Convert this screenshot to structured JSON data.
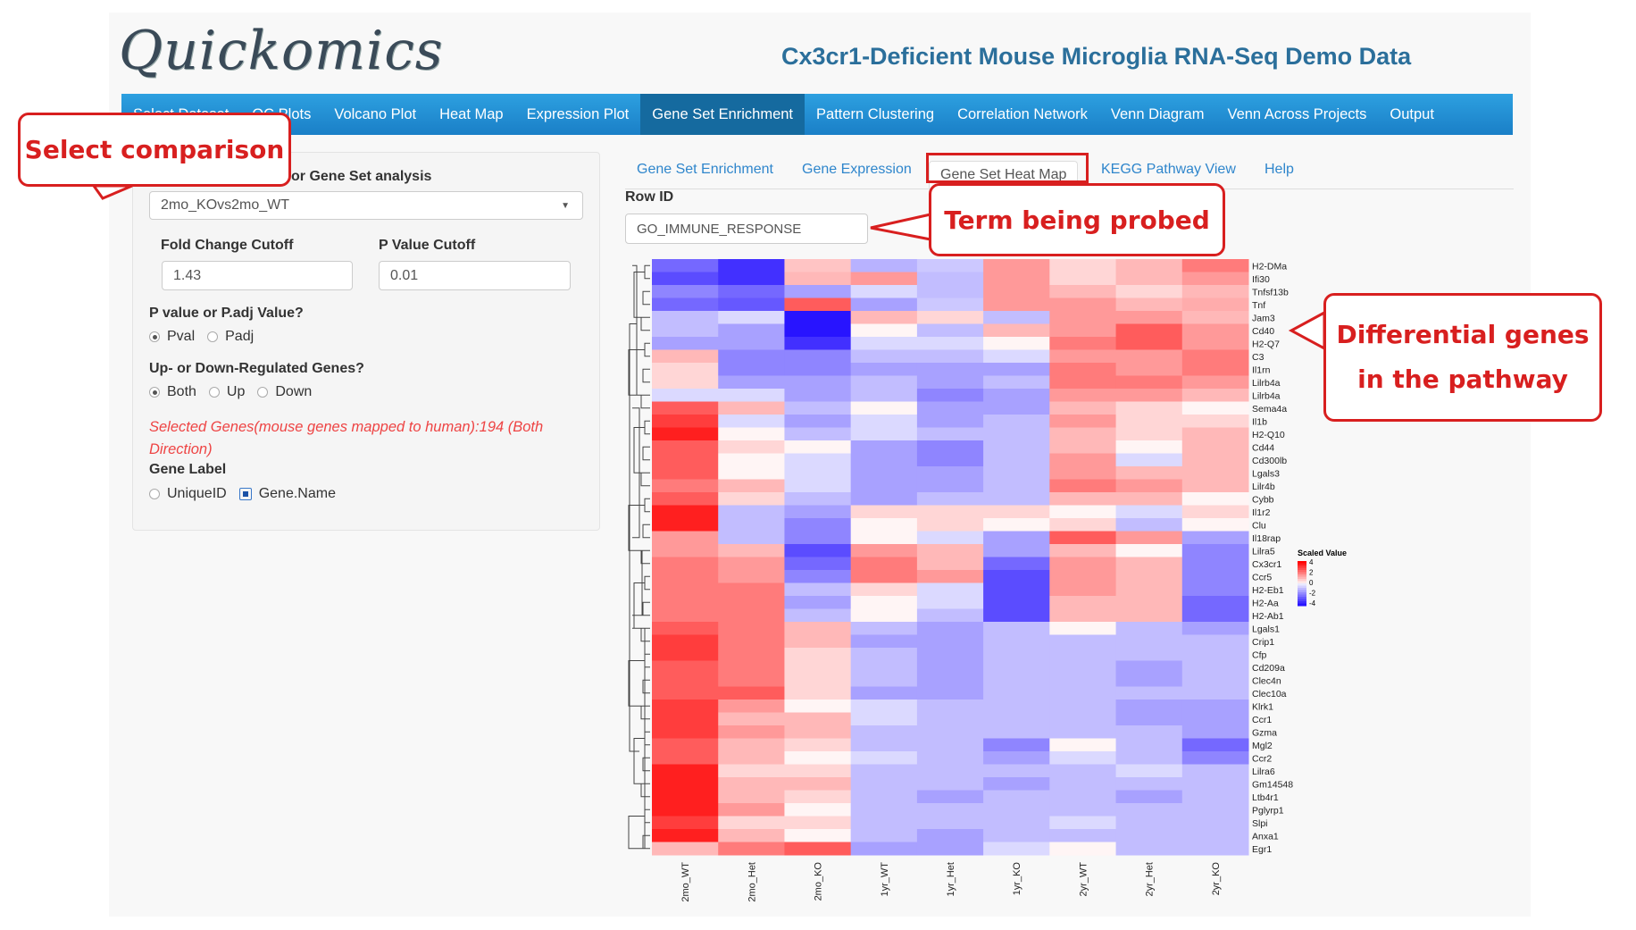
{
  "app": {
    "logo": "Quickomics",
    "project_title": "Cx3cr1-Deficient Mouse Microglia RNA-Seq Demo Data"
  },
  "nav": [
    "Select Dataset",
    "QC Plots",
    "Volcano Plot",
    "Heat Map",
    "Expression Plot",
    "Gene Set Enrichment",
    "Pattern Clustering",
    "Correlation Network",
    "Venn Diagram",
    "Venn Across Projects",
    "Output"
  ],
  "sidebar": {
    "comparison_label": "or Gene Set analysis",
    "comparison_value": "2mo_KOvs2mo_WT",
    "fold_change_label": "Fold Change Cutoff",
    "fold_change_value": "1.43",
    "pvalue_label": "P Value Cutoff",
    "pvalue_value": "0.01",
    "pval_type_label": "P value or P.adj Value?",
    "pval_opt": "Pval",
    "padj_opt": "Padj",
    "direction_label": "Up- or Down-Regulated Genes?",
    "both_opt": "Both",
    "up_opt": "Up",
    "down_opt": "Down",
    "selected_genes": "Selected Genes(mouse genes mapped to human):194 (Both Direction)",
    "gene_label_label": "Gene Label",
    "uniqueid_opt": "UniqueID",
    "genename_opt": "Gene.Name"
  },
  "tabs": {
    "gse": "Gene Set Enrichment",
    "gexp": "Gene Expression",
    "gshm": "Gene Set Heat Map",
    "kegg": "KEGG Pathway View",
    "help": "Help"
  },
  "rowid": {
    "label": "Row ID",
    "value": "GO_IMMUNE_RESPONSE"
  },
  "callouts": {
    "select": "Select comparison",
    "term": "Term being probed",
    "diff_line1": "Differential genes",
    "diff_line2": "in the pathway"
  },
  "chart_data": {
    "type": "heatmap",
    "columns": [
      "2mo_WT",
      "2mo_Het",
      "2mo_KO",
      "1yr_WT",
      "1yr_Het",
      "1yr_KO",
      "2yr_WT",
      "2yr_Het",
      "2yr_KO"
    ],
    "rows": [
      "H2-DMa",
      "Ifi30",
      "Tnfsf13b",
      "Tnf",
      "Jam3",
      "Cd40",
      "H2-Q7",
      "C3",
      "Il1rn",
      "Lilrb4a",
      "Lilrb4a",
      "Sema4a",
      "Il1b",
      "H2-Q10",
      "Cd44",
      "Cd300lb",
      "Lgals3",
      "Lilr4b",
      "Cybb",
      "Il1r2",
      "Clu",
      "Il18rap",
      "Lilra5",
      "Cx3cr1",
      "Ccr5",
      "H2-Eb1",
      "H2-Aa",
      "H2-Ab1",
      "Lgals1",
      "Crip1",
      "Cfp",
      "Cd209a",
      "Clec4n",
      "Clec10a",
      "Klrk1",
      "Ccr1",
      "Gzma",
      "Mgl2",
      "Ccr2",
      "Lilra6",
      "Gm14548",
      "Ltb4r1",
      "Pglyrp1",
      "Slpi",
      "Anxa1",
      "Egr1"
    ],
    "values": [
      [
        -2.5,
        -3.5,
        0.8,
        -1.2,
        -0.8,
        1.5,
        0.5,
        1,
        2
      ],
      [
        -3,
        -3.5,
        1,
        1.5,
        -1,
        1.5,
        0.5,
        1,
        1.5
      ],
      [
        -2,
        -2.5,
        -1.5,
        -0.5,
        -1,
        1.5,
        1,
        0.5,
        1
      ],
      [
        -2.5,
        -2.8,
        2.5,
        -1.5,
        -0.8,
        1.5,
        1.5,
        1,
        1.2
      ],
      [
        -1,
        -0.5,
        -4,
        1,
        0.5,
        -1,
        1.5,
        1.5,
        1
      ],
      [
        -1,
        -1.5,
        -4,
        0,
        -1,
        1,
        1.5,
        2.5,
        1.5
      ],
      [
        -1.5,
        -1.5,
        -3.5,
        -0.5,
        -0.5,
        0,
        2,
        2.5,
        1.5
      ],
      [
        1,
        -2,
        -2,
        -1,
        -1,
        -0.5,
        1.5,
        1.5,
        2
      ],
      [
        0.5,
        -2,
        -2,
        -1.5,
        -1.5,
        -1.5,
        2,
        1.5,
        2
      ],
      [
        0.5,
        -1.5,
        -1.5,
        -1,
        -1.5,
        -1,
        2,
        2,
        1.5
      ],
      [
        -0.5,
        -0.5,
        -1.5,
        -1,
        -2,
        -1.5,
        1.5,
        1.5,
        1
      ],
      [
        2.5,
        1,
        -1,
        0,
        -1.5,
        -1.5,
        1,
        0.5,
        0
      ],
      [
        3,
        -0.5,
        -1.5,
        -0.5,
        -1.5,
        -1,
        1.5,
        0.5,
        0.5
      ],
      [
        3.5,
        0,
        -1,
        -0.5,
        -1,
        -1,
        1,
        0.5,
        1
      ],
      [
        2.5,
        0.5,
        0,
        -1.5,
        -2,
        -1,
        1,
        0,
        1
      ],
      [
        2.5,
        0,
        -0.5,
        -1.5,
        -2,
        -1,
        1.5,
        -0.5,
        1
      ],
      [
        2.5,
        0,
        -0.5,
        -1.5,
        -1.5,
        -1,
        1.5,
        1,
        1
      ],
      [
        2,
        1,
        -0.5,
        -1.5,
        -1.5,
        -1,
        2,
        1.5,
        1
      ],
      [
        2.5,
        0.5,
        -1,
        -1.5,
        -1,
        -1,
        1,
        1,
        0
      ],
      [
        3.5,
        -1,
        -1.5,
        0.5,
        0.5,
        0.5,
        0,
        -0.5,
        0.5
      ],
      [
        3.5,
        -1,
        -2,
        0,
        0.5,
        0,
        0.5,
        -1,
        0
      ],
      [
        1.5,
        -1,
        -2,
        0,
        -0.5,
        -1.5,
        2.5,
        1.5,
        -1.5
      ],
      [
        1.5,
        1,
        -3,
        1.5,
        1,
        -1.5,
        1,
        0,
        -2
      ],
      [
        2,
        1.5,
        -2.5,
        2,
        1,
        -2.5,
        1.5,
        1,
        -2
      ],
      [
        2,
        1.5,
        -2,
        2,
        1.5,
        -3,
        1.5,
        1,
        -2
      ],
      [
        2,
        2,
        -1,
        0.5,
        -0.5,
        -3,
        1.5,
        1,
        -2
      ],
      [
        2,
        2,
        -1.5,
        0,
        -0.5,
        -3,
        1,
        1,
        -2.5
      ],
      [
        2,
        2,
        -1,
        0,
        -1,
        -3,
        1,
        1,
        -2.5
      ],
      [
        2.5,
        2,
        1,
        -1,
        -1.5,
        -1,
        0,
        -1,
        -1.5
      ],
      [
        3,
        2,
        1,
        -1.5,
        -1.5,
        -1,
        -1,
        -1,
        -1
      ],
      [
        3,
        2,
        0.5,
        -1,
        -1.5,
        -1,
        -1,
        -1,
        -1
      ],
      [
        2.5,
        2,
        0.5,
        -1,
        -1.5,
        -1,
        -1,
        -1.5,
        -1
      ],
      [
        2.5,
        2,
        0.5,
        -1,
        -1.5,
        -1,
        -1,
        -1.5,
        -1
      ],
      [
        2.5,
        2.5,
        0.5,
        -1.5,
        -1.5,
        -1,
        -1,
        -1,
        -1
      ],
      [
        3,
        1.5,
        0,
        -0.5,
        -1,
        -1,
        -1,
        -1.5,
        -1.5
      ],
      [
        3,
        1,
        1,
        -0.5,
        -1,
        -1,
        -1,
        -1.5,
        -1.5
      ],
      [
        3,
        1.5,
        1,
        -1,
        -1,
        -1,
        -1,
        -1,
        -1.5
      ],
      [
        2.5,
        1,
        0.5,
        -1,
        -1,
        -2,
        0,
        -1,
        -2.5
      ],
      [
        2.5,
        1,
        0,
        -0.5,
        -1,
        -1.5,
        -0.5,
        -1,
        -2
      ],
      [
        3.5,
        0.5,
        0.5,
        -1,
        -1,
        -1,
        -1,
        -0.5,
        -1
      ],
      [
        3.5,
        1,
        1,
        -1,
        -1,
        -1.5,
        -1,
        -1,
        -1
      ],
      [
        3.5,
        1,
        0.5,
        -1,
        -1.5,
        -1,
        -1,
        -1.5,
        -1
      ],
      [
        3.5,
        1.5,
        0,
        -1,
        -1,
        -1,
        -1,
        -1,
        -1
      ],
      [
        3,
        0.5,
        0.5,
        -1,
        -1,
        -1,
        -0.5,
        -1,
        -1
      ],
      [
        3.5,
        1,
        0,
        -1,
        -1.5,
        -1,
        -1,
        -1,
        -1
      ],
      [
        1,
        2,
        2.5,
        -1.5,
        -1.5,
        -0.5,
        0,
        -1,
        -1
      ]
    ],
    "legend_title": "Scaled Value",
    "legend_ticks": [
      "4",
      "2",
      "0",
      "-2",
      "-4"
    ],
    "value_range": [
      -4,
      4
    ]
  }
}
